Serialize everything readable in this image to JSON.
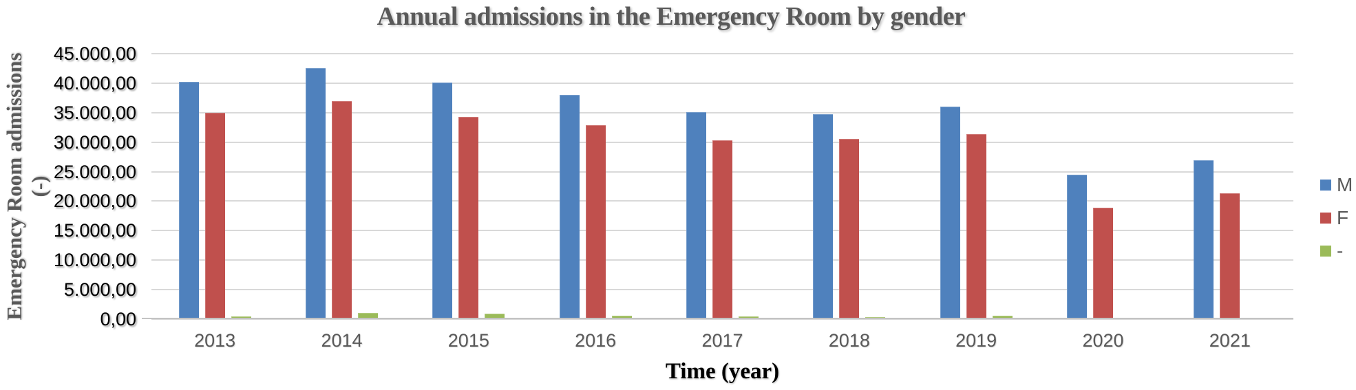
{
  "title": "Annual admissions in the Emergency Room by gender",
  "y_axis": {
    "title_line1": "Emergency Room admissions",
    "title_line2": "(-)",
    "tick_labels": [
      "45.000,00",
      "40.000,00",
      "35.000,00",
      "30.000,00",
      "25.000,00",
      "20.000,00",
      "15.000,00",
      "10.000,00",
      "5.000,00",
      "0,00"
    ]
  },
  "x_axis": {
    "title": "Time (year)"
  },
  "legend": [
    {
      "label": "M",
      "color": "#4F81BD"
    },
    {
      "label": "F",
      "color": "#C0504D"
    },
    {
      "label": "-",
      "color": "#9BBB59"
    }
  ],
  "colors": {
    "male": "#4F81BD",
    "female": "#C0504D",
    "unspecified": "#9BBB59",
    "gridline": "#D9D9D9",
    "axis_text": "#595959"
  },
  "chart_data": {
    "type": "bar",
    "title": "Annual admissions in the Emergency Room by gender",
    "xlabel": "Time (year)",
    "ylabel": "Emergency Room admissions (-)",
    "categories": [
      "2013",
      "2014",
      "2015",
      "2016",
      "2017",
      "2018",
      "2019",
      "2020",
      "2021"
    ],
    "series": [
      {
        "name": "M",
        "color": "#4F81BD",
        "values": [
          40200,
          42500,
          40100,
          38000,
          35100,
          34800,
          36000,
          24500,
          26900
        ]
      },
      {
        "name": "F",
        "color": "#C0504D",
        "values": [
          35000,
          37000,
          34300,
          32900,
          30300,
          30500,
          31400,
          18900,
          21300
        ]
      },
      {
        "name": "-",
        "color": "#9BBB59",
        "values": [
          500,
          1000,
          900,
          600,
          450,
          300,
          550,
          250,
          200
        ]
      }
    ],
    "ylim": [
      0,
      45000
    ],
    "ytick_step": 5000,
    "grid": true,
    "legend_position": "right",
    "number_format": "european"
  }
}
